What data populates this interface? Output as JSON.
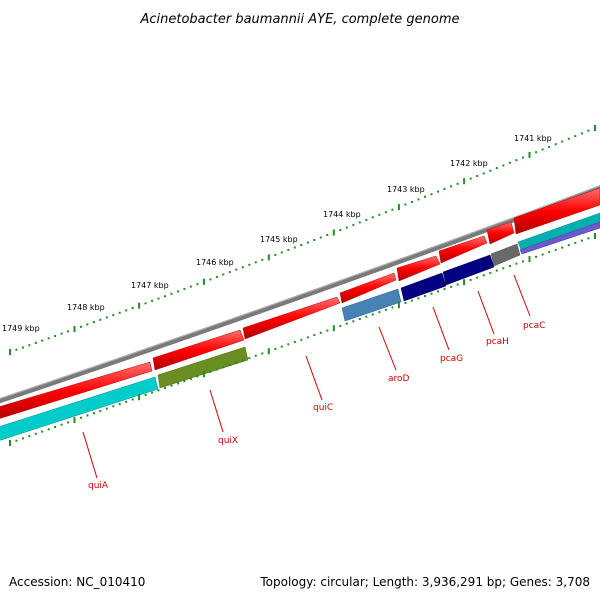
{
  "title": "Acinetobacter baumannii AYE, complete genome",
  "footer": {
    "accession": "Accession: NC_010410",
    "topology": "Topology: circular; Length: 3,936,291 bp; Genes: 3,708"
  },
  "kbp_labels": [
    "1741 kbp",
    "1742 kbp",
    "1743 kbp",
    "1744 kbp",
    "1745 kbp",
    "1746 kbp",
    "1747 kbp",
    "1748 kbp",
    "1749 kbp"
  ],
  "genes": [
    {
      "name": "quiA",
      "color": "#00cccc"
    },
    {
      "name": "quiX",
      "color": "#6b8e23"
    },
    {
      "name": "quiC",
      "color": "#ff0000"
    },
    {
      "name": "aroD",
      "color": "#4682b4"
    },
    {
      "name": "pcaG",
      "color": "#000080"
    },
    {
      "name": "pcaH",
      "color": "#000080"
    },
    {
      "name": "pcaC",
      "color": "#696969"
    }
  ],
  "colors": {
    "backbone": "#808080",
    "forward_genes": "#ff0000",
    "ticks": "#228b22",
    "label": "#d00000"
  }
}
